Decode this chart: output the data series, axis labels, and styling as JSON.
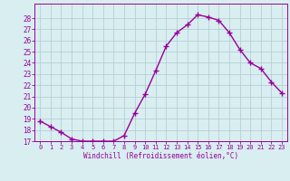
{
  "x": [
    0,
    1,
    2,
    3,
    4,
    5,
    6,
    7,
    8,
    9,
    10,
    11,
    12,
    13,
    14,
    15,
    16,
    17,
    18,
    19,
    20,
    21,
    22,
    23
  ],
  "y": [
    18.8,
    18.3,
    17.8,
    17.2,
    17.0,
    17.0,
    17.0,
    17.0,
    17.5,
    19.5,
    21.2,
    23.3,
    25.5,
    26.7,
    27.4,
    28.3,
    28.1,
    27.8,
    26.7,
    25.2,
    24.0,
    23.5,
    22.3,
    21.3
  ],
  "line_color": "#990099",
  "marker": "+",
  "marker_size": 4,
  "bg_color": "#d8eef0",
  "grid_color": "#b0c8d0",
  "tick_color": "#990099",
  "xlabel": "Windchill (Refroidissement éolien,°C)",
  "ylabel": "",
  "ylim": [
    17,
    29
  ],
  "xlim": [
    -0.5,
    23.5
  ],
  "yticks": [
    17,
    18,
    19,
    20,
    21,
    22,
    23,
    24,
    25,
    26,
    27,
    28
  ],
  "xticks": [
    0,
    1,
    2,
    3,
    4,
    5,
    6,
    7,
    8,
    9,
    10,
    11,
    12,
    13,
    14,
    15,
    16,
    17,
    18,
    19,
    20,
    21,
    22,
    23
  ],
  "font_family": "monospace",
  "xtick_fontsize": 5.0,
  "ytick_fontsize": 5.5,
  "xlabel_fontsize": 5.5
}
